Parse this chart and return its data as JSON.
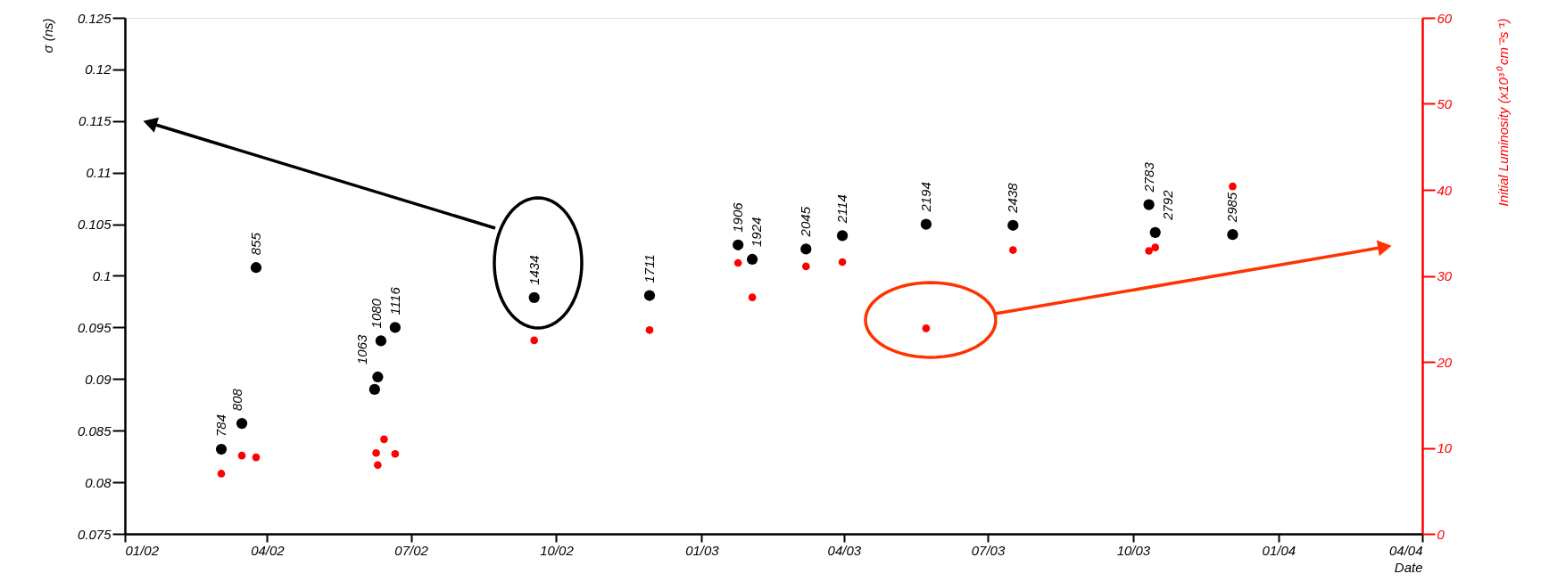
{
  "chart_data": {
    "type": "scatter",
    "xlabel": "Date",
    "ylabel": "σ  (ns)",
    "y2label": "Initial Luminosity  (x10³⁰ cm⁻²s⁻¹)",
    "xlim": [
      "2002-01-01",
      "2004-04-01"
    ],
    "xticks": [
      {
        "value": "2002-01-01",
        "label": "01/02"
      },
      {
        "value": "2002-04-01",
        "label": "04/02"
      },
      {
        "value": "2002-07-01",
        "label": "07/02"
      },
      {
        "value": "2002-10-01",
        "label": "10/02"
      },
      {
        "value": "2003-01-01",
        "label": "01/03"
      },
      {
        "value": "2003-04-01",
        "label": "04/03"
      },
      {
        "value": "2003-07-01",
        "label": "07/03"
      },
      {
        "value": "2003-10-01",
        "label": "10/03"
      },
      {
        "value": "2004-01-01",
        "label": "01/04"
      },
      {
        "value": "2004-04-01",
        "label": "04/04"
      }
    ],
    "ylim": [
      0.075,
      0.125
    ],
    "yticks": [
      0.075,
      0.08,
      0.085,
      0.09,
      0.095,
      0.1,
      0.105,
      0.11,
      0.115,
      0.12,
      0.125
    ],
    "y2lim": [
      0,
      60
    ],
    "y2ticks": [
      0,
      10,
      20,
      30,
      40,
      50,
      60
    ],
    "grid": false,
    "legend": false,
    "marker": "circle",
    "series": [
      {
        "color": "#000000",
        "axis": "y",
        "x": [
          "2002-03-03",
          "2002-03-16",
          "2002-03-25",
          "2002-06-08",
          "2002-06-10",
          "2002-06-12",
          "2002-06-21",
          "2002-09-17",
          "2002-11-29",
          "2003-01-24",
          "2003-02-02",
          "2003-03-08",
          "2003-03-31",
          "2003-05-23",
          "2003-07-17",
          "2003-10-11",
          "2003-10-15",
          "2003-12-03"
        ],
        "values": [
          0.0832,
          0.0857,
          0.1008,
          0.089,
          0.0902,
          0.0937,
          0.095,
          0.0979,
          0.0981,
          0.103,
          0.1016,
          0.1026,
          0.1039,
          0.105,
          0.1049,
          0.1069,
          0.1042,
          0.104
        ]
      },
      {
        "color": "#ff0000",
        "axis": "y2",
        "x": [
          "2002-03-03",
          "2002-03-16",
          "2002-03-25",
          "2002-06-09",
          "2002-06-10",
          "2002-06-14",
          "2002-06-21",
          "2002-09-17",
          "2002-11-29",
          "2003-01-24",
          "2003-02-02",
          "2003-03-08",
          "2003-03-31",
          "2003-05-23",
          "2003-07-17",
          "2003-10-11",
          "2003-10-15",
          "2003-12-03"
        ],
        "values": [
          7.0,
          9.1,
          8.9,
          9.4,
          8.0,
          11.0,
          9.3,
          22.5,
          23.7,
          31.5,
          27.5,
          31.1,
          31.6,
          23.9,
          33.0,
          32.9,
          33.3,
          40.4
        ]
      }
    ],
    "annotations": [
      {
        "text": "784",
        "x": "2002-03-03",
        "y": 0.0832
      },
      {
        "text": "808",
        "x": "2002-03-16",
        "y": 0.0857
      },
      {
        "text": "855",
        "x": "2002-03-25",
        "y": 0.1008
      },
      {
        "text": "1063",
        "x": "2002-06-10",
        "y": 0.0902
      },
      {
        "text": "1080",
        "x": "2002-06-12",
        "y": 0.0937
      },
      {
        "text": "1116",
        "x": "2002-06-21",
        "y": 0.095
      },
      {
        "text": "1434",
        "x": "2002-09-17",
        "y": 0.0979
      },
      {
        "text": "1711",
        "x": "2002-11-29",
        "y": 0.0981
      },
      {
        "text": "1906",
        "x": "2003-01-24",
        "y": 0.103
      },
      {
        "text": "1924",
        "x": "2003-02-02",
        "y": 0.1016
      },
      {
        "text": "2045",
        "x": "2003-03-08",
        "y": 0.1026
      },
      {
        "text": "2114",
        "x": "2003-03-31",
        "y": 0.1039
      },
      {
        "text": "2194",
        "x": "2003-05-23",
        "y": 0.105
      },
      {
        "text": "2438",
        "x": "2003-07-17",
        "y": 0.1049
      },
      {
        "text": "2783",
        "x": "2003-10-11",
        "y": 0.1069
      },
      {
        "text": "2792",
        "x": "2003-10-15",
        "y": 0.1042
      },
      {
        "text": "2985",
        "x": "2003-12-03",
        "y": 0.104
      }
    ]
  }
}
